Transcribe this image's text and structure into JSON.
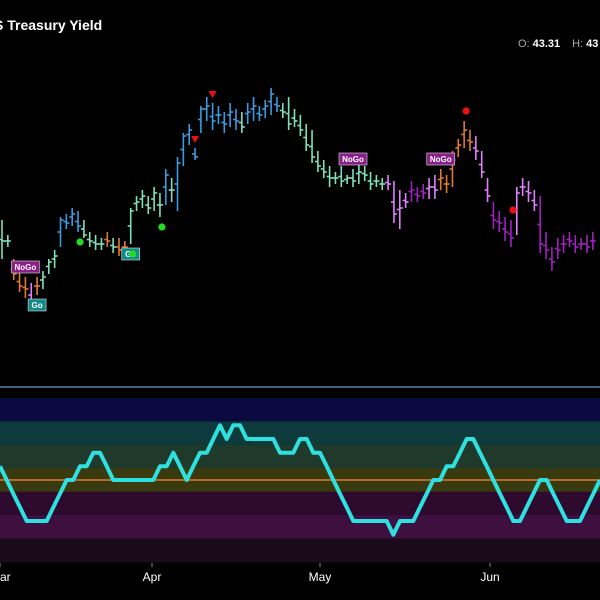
{
  "header": {
    "title": "S Treasury Yield",
    "ohlc": [
      {
        "key": "O:",
        "value": "43.31"
      },
      {
        "key": "H:",
        "value": "43"
      }
    ]
  },
  "colors": {
    "background": "#000000",
    "strong_go": "#3a9be0",
    "weak_go": "#7fe0c0",
    "weak_nogo": "#e080ff",
    "strong_nogo": "#a020c0",
    "neutral": "#e07a30",
    "oscillator": "#2ee0e0",
    "signal_go": "#22dd22",
    "signal_nogo": "#ee1111",
    "tag_nogo": "#8a1f8a",
    "tag_go": "#138a8a",
    "panel_divider": "#5580aa"
  },
  "chart_data": [
    {
      "type": "ohlc-bars",
      "title": "S Treasury Yield",
      "x_labels": [
        "ar",
        "Apr",
        "May",
        "Jun"
      ],
      "bars": [
        {
          "h": 41.5,
          "l": 40.2,
          "c": 40.8,
          "color": "weak_go"
        },
        {
          "h": 41.0,
          "l": 40.6,
          "c": 40.8,
          "color": "weak_go"
        },
        {
          "h": 40.2,
          "l": 39.5,
          "c": 39.7,
          "color": "neutral"
        },
        {
          "h": 39.8,
          "l": 39.1,
          "c": 39.3,
          "color": "neutral"
        },
        {
          "h": 39.6,
          "l": 38.9,
          "c": 39.2,
          "color": "neutral"
        },
        {
          "h": 39.4,
          "l": 38.6,
          "c": 38.8,
          "color": "weak_nogo"
        },
        {
          "h": 39.6,
          "l": 39.0,
          "c": 39.3,
          "color": "neutral"
        },
        {
          "h": 39.8,
          "l": 39.2,
          "c": 39.6,
          "color": "weak_go"
        },
        {
          "h": 40.2,
          "l": 39.7,
          "c": 40.1,
          "color": "weak_go"
        },
        {
          "h": 40.5,
          "l": 39.9,
          "c": 40.3,
          "color": "weak_go"
        },
        {
          "h": 41.6,
          "l": 40.6,
          "c": 41.5,
          "color": "strong_go"
        },
        {
          "h": 41.7,
          "l": 41.2,
          "c": 41.4,
          "color": "strong_go"
        },
        {
          "h": 41.9,
          "l": 41.3,
          "c": 41.7,
          "color": "strong_go"
        },
        {
          "h": 41.8,
          "l": 41.1,
          "c": 41.3,
          "color": "strong_go"
        },
        {
          "h": 41.5,
          "l": 40.9,
          "c": 41.0,
          "color": "weak_go"
        },
        {
          "h": 41.1,
          "l": 40.6,
          "c": 40.8,
          "color": "weak_go"
        },
        {
          "h": 41.0,
          "l": 40.5,
          "c": 40.7,
          "color": "weak_go"
        },
        {
          "h": 40.9,
          "l": 40.5,
          "c": 40.7,
          "color": "weak_go"
        },
        {
          "h": 41.1,
          "l": 40.6,
          "c": 40.8,
          "color": "neutral"
        },
        {
          "h": 40.9,
          "l": 40.4,
          "c": 40.6,
          "color": "weak_go"
        },
        {
          "h": 40.9,
          "l": 40.3,
          "c": 40.5,
          "color": "neutral"
        },
        {
          "h": 40.8,
          "l": 40.4,
          "c": 40.6,
          "color": "neutral"
        },
        {
          "h": 41.9,
          "l": 40.7,
          "c": 41.8,
          "color": "weak_go"
        },
        {
          "h": 42.3,
          "l": 41.8,
          "c": 42.1,
          "color": "weak_go"
        },
        {
          "h": 42.5,
          "l": 41.9,
          "c": 42.3,
          "color": "weak_go"
        },
        {
          "h": 42.3,
          "l": 41.7,
          "c": 41.9,
          "color": "weak_go"
        },
        {
          "h": 42.6,
          "l": 41.8,
          "c": 42.4,
          "color": "weak_go"
        },
        {
          "h": 42.4,
          "l": 41.6,
          "c": 42.0,
          "color": "weak_go"
        },
        {
          "h": 43.2,
          "l": 42.0,
          "c": 43.0,
          "color": "strong_go"
        },
        {
          "h": 42.9,
          "l": 42.1,
          "c": 42.5,
          "color": "weak_go"
        },
        {
          "h": 43.6,
          "l": 41.8,
          "c": 43.4,
          "color": "strong_go"
        },
        {
          "h": 44.4,
          "l": 43.3,
          "c": 44.3,
          "color": "strong_go"
        },
        {
          "h": 44.7,
          "l": 44.0,
          "c": 44.5,
          "color": "strong_go"
        },
        {
          "h": 43.9,
          "l": 43.5,
          "c": 43.6,
          "color": "strong_go"
        },
        {
          "h": 45.3,
          "l": 44.4,
          "c": 45.2,
          "color": "strong_go"
        },
        {
          "h": 45.6,
          "l": 44.8,
          "c": 45.3,
          "color": "strong_go"
        },
        {
          "h": 45.4,
          "l": 44.5,
          "c": 44.8,
          "color": "strong_go"
        },
        {
          "h": 45.3,
          "l": 44.7,
          "c": 45.0,
          "color": "strong_go"
        },
        {
          "h": 45.1,
          "l": 44.4,
          "c": 44.7,
          "color": "strong_go"
        },
        {
          "h": 45.4,
          "l": 44.6,
          "c": 45.1,
          "color": "strong_go"
        },
        {
          "h": 45.2,
          "l": 44.5,
          "c": 44.8,
          "color": "strong_go"
        },
        {
          "h": 45.1,
          "l": 44.4,
          "c": 44.6,
          "color": "weak_go"
        },
        {
          "h": 45.4,
          "l": 44.7,
          "c": 45.1,
          "color": "strong_go"
        },
        {
          "h": 45.6,
          "l": 44.8,
          "c": 45.3,
          "color": "strong_go"
        },
        {
          "h": 45.3,
          "l": 44.8,
          "c": 45.0,
          "color": "strong_go"
        },
        {
          "h": 45.5,
          "l": 44.9,
          "c": 45.3,
          "color": "strong_go"
        },
        {
          "h": 45.9,
          "l": 45.0,
          "c": 45.7,
          "color": "strong_go"
        },
        {
          "h": 45.6,
          "l": 45.1,
          "c": 45.3,
          "color": "strong_go"
        },
        {
          "h": 45.4,
          "l": 44.9,
          "c": 45.1,
          "color": "weak_go"
        },
        {
          "h": 45.6,
          "l": 44.5,
          "c": 44.7,
          "color": "weak_go"
        },
        {
          "h": 45.2,
          "l": 44.6,
          "c": 44.8,
          "color": "weak_go"
        },
        {
          "h": 45.0,
          "l": 44.3,
          "c": 44.5,
          "color": "weak_go"
        },
        {
          "h": 44.7,
          "l": 43.8,
          "c": 44.0,
          "color": "weak_go"
        },
        {
          "h": 44.5,
          "l": 43.4,
          "c": 43.6,
          "color": "weak_go"
        },
        {
          "h": 43.8,
          "l": 43.1,
          "c": 43.3,
          "color": "weak_go"
        },
        {
          "h": 43.5,
          "l": 42.9,
          "c": 43.1,
          "color": "weak_go"
        },
        {
          "h": 43.3,
          "l": 42.6,
          "c": 42.9,
          "color": "weak_go"
        },
        {
          "h": 43.1,
          "l": 42.7,
          "c": 42.9,
          "color": "weak_go"
        },
        {
          "h": 43.3,
          "l": 42.6,
          "c": 42.8,
          "color": "weak_go"
        },
        {
          "h": 43.0,
          "l": 42.7,
          "c": 42.9,
          "color": "weak_go"
        },
        {
          "h": 43.2,
          "l": 42.6,
          "c": 42.8,
          "color": "weak_go"
        },
        {
          "h": 43.4,
          "l": 42.7,
          "c": 43.1,
          "color": "weak_go"
        },
        {
          "h": 43.3,
          "l": 42.8,
          "c": 43.0,
          "color": "weak_go"
        },
        {
          "h": 43.1,
          "l": 42.5,
          "c": 42.7,
          "color": "weak_go"
        },
        {
          "h": 43.0,
          "l": 42.6,
          "c": 42.8,
          "color": "weak_go"
        },
        {
          "h": 42.9,
          "l": 42.5,
          "c": 42.7,
          "color": "weak_go"
        },
        {
          "h": 43.0,
          "l": 42.5,
          "c": 42.7,
          "color": "weak_nogo"
        },
        {
          "h": 42.8,
          "l": 41.4,
          "c": 41.7,
          "color": "weak_nogo"
        },
        {
          "h": 42.5,
          "l": 41.2,
          "c": 41.9,
          "color": "weak_nogo"
        },
        {
          "h": 42.4,
          "l": 41.9,
          "c": 42.1,
          "color": "weak_nogo"
        },
        {
          "h": 42.8,
          "l": 42.1,
          "c": 42.5,
          "color": "strong_nogo"
        },
        {
          "h": 42.6,
          "l": 42.1,
          "c": 42.3,
          "color": "strong_nogo"
        },
        {
          "h": 42.7,
          "l": 42.2,
          "c": 42.4,
          "color": "strong_nogo"
        },
        {
          "h": 42.9,
          "l": 42.2,
          "c": 42.6,
          "color": "weak_nogo"
        },
        {
          "h": 43.0,
          "l": 42.2,
          "c": 42.5,
          "color": "weak_nogo"
        },
        {
          "h": 43.2,
          "l": 42.5,
          "c": 42.9,
          "color": "neutral"
        },
        {
          "h": 43.0,
          "l": 42.4,
          "c": 42.7,
          "color": "neutral"
        },
        {
          "h": 43.8,
          "l": 42.6,
          "c": 43.5,
          "color": "neutral"
        },
        {
          "h": 44.2,
          "l": 43.6,
          "c": 44.0,
          "color": "neutral"
        },
        {
          "h": 44.8,
          "l": 43.9,
          "c": 44.5,
          "color": "neutral"
        },
        {
          "h": 44.5,
          "l": 43.8,
          "c": 44.1,
          "color": "neutral"
        },
        {
          "h": 44.3,
          "l": 43.5,
          "c": 43.8,
          "color": "weak_nogo"
        },
        {
          "h": 43.8,
          "l": 42.9,
          "c": 43.1,
          "color": "weak_nogo"
        },
        {
          "h": 42.9,
          "l": 42.1,
          "c": 42.3,
          "color": "weak_nogo"
        },
        {
          "h": 42.1,
          "l": 41.2,
          "c": 41.5,
          "color": "strong_nogo"
        },
        {
          "h": 41.8,
          "l": 41.1,
          "c": 41.4,
          "color": "strong_nogo"
        },
        {
          "h": 41.6,
          "l": 40.8,
          "c": 41.1,
          "color": "strong_nogo"
        },
        {
          "h": 41.5,
          "l": 40.6,
          "c": 40.9,
          "color": "strong_nogo"
        },
        {
          "h": 42.6,
          "l": 41.0,
          "c": 42.4,
          "color": "weak_nogo"
        },
        {
          "h": 42.9,
          "l": 42.3,
          "c": 42.6,
          "color": "weak_nogo"
        },
        {
          "h": 42.8,
          "l": 42.1,
          "c": 42.4,
          "color": "weak_nogo"
        },
        {
          "h": 42.5,
          "l": 41.8,
          "c": 42.0,
          "color": "weak_nogo"
        },
        {
          "h": 42.3,
          "l": 40.4,
          "c": 40.7,
          "color": "strong_nogo"
        },
        {
          "h": 41.1,
          "l": 40.2,
          "c": 40.5,
          "color": "strong_nogo"
        },
        {
          "h": 40.6,
          "l": 39.8,
          "c": 40.1,
          "color": "strong_nogo"
        },
        {
          "h": 40.9,
          "l": 40.2,
          "c": 40.5,
          "color": "strong_nogo"
        },
        {
          "h": 41.0,
          "l": 40.4,
          "c": 40.7,
          "color": "strong_nogo"
        },
        {
          "h": 41.1,
          "l": 40.6,
          "c": 40.8,
          "color": "strong_nogo"
        },
        {
          "h": 41.0,
          "l": 40.4,
          "c": 40.6,
          "color": "strong_nogo"
        },
        {
          "h": 40.9,
          "l": 40.5,
          "c": 40.7,
          "color": "strong_nogo"
        },
        {
          "h": 41.0,
          "l": 40.4,
          "c": 40.6,
          "color": "strong_nogo"
        },
        {
          "h": 41.1,
          "l": 40.5,
          "c": 40.8,
          "color": "strong_nogo"
        }
      ],
      "signals": [
        {
          "bar": 4,
          "type": "tag-nogo",
          "text": "NoGo"
        },
        {
          "bar": 6,
          "type": "tag-go",
          "text": "Go"
        },
        {
          "bar": 13,
          "type": "dot-go"
        },
        {
          "bar": 22,
          "type": "tag-go",
          "text": "Go"
        },
        {
          "bar": 22,
          "type": "dot-go"
        },
        {
          "bar": 27,
          "type": "dot-go"
        },
        {
          "bar": 33,
          "type": "tri-nogo"
        },
        {
          "bar": 36,
          "type": "tri-nogo"
        },
        {
          "bar": 60,
          "type": "tag-nogo",
          "text": "NoGo"
        },
        {
          "bar": 75,
          "type": "tag-nogo",
          "text": "NoGo"
        },
        {
          "bar": 79,
          "type": "dot-nogo"
        },
        {
          "bar": 87,
          "type": "dot-nogo"
        }
      ]
    },
    {
      "type": "line",
      "name": "oscillator",
      "values": [
        1,
        0,
        -1,
        -2,
        -3,
        -3,
        -3,
        -3,
        -2,
        -1,
        0,
        0,
        1,
        1,
        2,
        2,
        1,
        0,
        0,
        0,
        0,
        0,
        0,
        0,
        1,
        1,
        2,
        1,
        0,
        1,
        2,
        2,
        3,
        4,
        3,
        4,
        4,
        3,
        3,
        3,
        3,
        3,
        2,
        2,
        2,
        3,
        3,
        2,
        2,
        1,
        0,
        -1,
        -2,
        -3,
        -3,
        -3,
        -3,
        -3,
        -3,
        -4,
        -3,
        -3,
        -3,
        -2,
        -1,
        0,
        0,
        1,
        1,
        2,
        3,
        3,
        2,
        1,
        0,
        -1,
        -2,
        -3,
        -3,
        -2,
        -1,
        0,
        0,
        -1,
        -2,
        -3,
        -3,
        -3,
        -2,
        -1,
        0
      ],
      "ylim": [
        -6,
        6
      ]
    }
  ]
}
